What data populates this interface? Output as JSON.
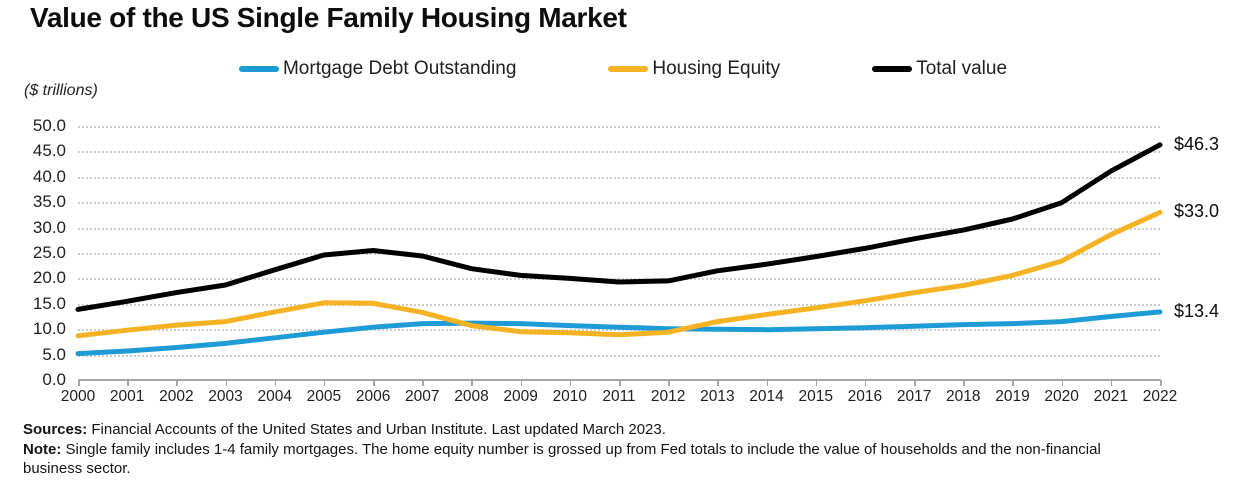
{
  "title": "Value of the US Single Family Housing Market",
  "legend": [
    {
      "label": "Mortgage Debt Outstanding",
      "color": "#1e9bd7"
    },
    {
      "label": "Housing Equity",
      "color": "#f5b324"
    },
    {
      "label": "Total value",
      "color": "#000000"
    }
  ],
  "chart_data": {
    "type": "line",
    "title": "Value of the US Single Family Housing Market",
    "ylabel": "($ trillions)",
    "ylim": [
      0,
      50
    ],
    "ytick_step": 5,
    "ytick_labels": [
      "0.0",
      "5.0",
      "10.0",
      "15.0",
      "20.0",
      "25.0",
      "30.0",
      "35.0",
      "40.0",
      "45.0",
      "50.0"
    ],
    "grid": "horizontal-dotted",
    "legend_position": "top",
    "x": [
      2000,
      2001,
      2002,
      2003,
      2004,
      2005,
      2006,
      2007,
      2008,
      2009,
      2010,
      2011,
      2012,
      2013,
      2014,
      2015,
      2016,
      2017,
      2018,
      2019,
      2020,
      2021,
      2022
    ],
    "series": [
      {
        "name": "Mortgage Debt Outstanding",
        "color": "#1e9bd7",
        "values": [
          5.2,
          5.7,
          6.4,
          7.2,
          8.3,
          9.4,
          10.4,
          11.1,
          11.2,
          11.1,
          10.7,
          10.4,
          10.1,
          10.0,
          9.9,
          10.1,
          10.3,
          10.6,
          10.9,
          11.1,
          11.5,
          12.5,
          13.4
        ],
        "end_label": "$13.4"
      },
      {
        "name": "Housing Equity",
        "color": "#f5b324",
        "values": [
          8.7,
          9.8,
          10.8,
          11.5,
          13.4,
          15.2,
          15.1,
          13.3,
          10.7,
          9.5,
          9.3,
          8.9,
          9.4,
          11.5,
          12.9,
          14.2,
          15.6,
          17.2,
          18.6,
          20.6,
          23.4,
          28.6,
          33.0
        ],
        "end_label": "$33.0"
      },
      {
        "name": "Total value",
        "color": "#000000",
        "values": [
          13.9,
          15.5,
          17.2,
          18.7,
          21.7,
          24.6,
          25.5,
          24.4,
          21.9,
          20.6,
          20.0,
          19.3,
          19.5,
          21.5,
          22.8,
          24.3,
          25.9,
          27.8,
          29.5,
          31.7,
          34.9,
          41.1,
          46.3
        ],
        "end_label": "$46.3"
      }
    ]
  },
  "footer": {
    "sources_label": "Sources:",
    "sources_text": " Financial Accounts of the United States and Urban Institute. Last updated March 2023.",
    "note_label": "Note:",
    "note_text": " Single family includes 1-4 family mortgages. The home equity number is grossed up from Fed totals to include the value of households and the non-financial business sector."
  }
}
